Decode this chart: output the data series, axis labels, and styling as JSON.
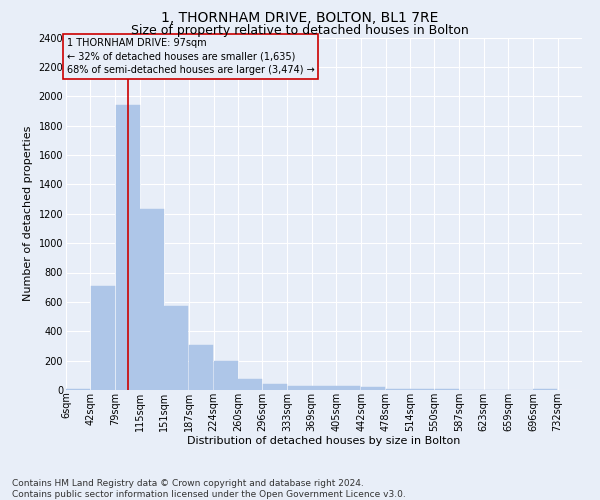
{
  "title": "1, THORNHAM DRIVE, BOLTON, BL1 7RE",
  "subtitle": "Size of property relative to detached houses in Bolton",
  "xlabel": "Distribution of detached houses by size in Bolton",
  "ylabel": "Number of detached properties",
  "bar_color": "#aec6e8",
  "bar_edgecolor": "#aec6e8",
  "marker_line_color": "#cc0000",
  "marker_value": 97,
  "annotation_text": "1 THORNHAM DRIVE: 97sqm\n← 32% of detached houses are smaller (1,635)\n68% of semi-detached houses are larger (3,474) →",
  "annotation_box_edgecolor": "#cc0000",
  "background_color": "#e8eef8",
  "grid_color": "#ffffff",
  "footer": "Contains HM Land Registry data © Crown copyright and database right 2024.\nContains public sector information licensed under the Open Government Licence v3.0.",
  "bins_left": [
    6,
    42,
    79,
    115,
    151,
    187,
    224,
    260,
    296,
    333,
    369,
    405,
    442,
    478,
    514,
    550,
    587,
    623,
    659,
    696
  ],
  "bin_width": 36,
  "values": [
    10,
    710,
    1940,
    1230,
    575,
    305,
    200,
    75,
    40,
    30,
    25,
    30,
    20,
    5,
    10,
    5,
    2,
    2,
    2,
    10
  ],
  "ylim": [
    0,
    2400
  ],
  "yticks": [
    0,
    200,
    400,
    600,
    800,
    1000,
    1200,
    1400,
    1600,
    1800,
    2000,
    2200,
    2400
  ],
  "xtick_labels": [
    "6sqm",
    "42sqm",
    "79sqm",
    "115sqm",
    "151sqm",
    "187sqm",
    "224sqm",
    "260sqm",
    "296sqm",
    "333sqm",
    "369sqm",
    "405sqm",
    "442sqm",
    "478sqm",
    "514sqm",
    "550sqm",
    "587sqm",
    "623sqm",
    "659sqm",
    "696sqm",
    "732sqm"
  ],
  "title_fontsize": 10,
  "subtitle_fontsize": 9,
  "axis_fontsize": 8,
  "tick_fontsize": 7,
  "footer_fontsize": 6.5
}
